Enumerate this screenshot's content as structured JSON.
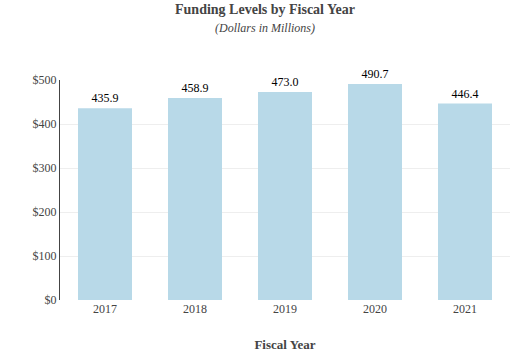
{
  "chart_data": {
    "type": "bar",
    "title": "Funding Levels by Fiscal Year",
    "subtitle": "(Dollars in Millions)",
    "xlabel": "Fiscal Year",
    "categories": [
      "2017",
      "2018",
      "2019",
      "2020",
      "2021"
    ],
    "values": [
      435.9,
      458.9,
      473.0,
      490.7,
      446.4
    ],
    "value_labels": [
      "435.9",
      "458.9",
      "473.0",
      "490.7",
      "446.4"
    ],
    "data_labels": true,
    "color": "#b8d9e8",
    "ylim": [
      0,
      500
    ],
    "yticks": [
      {
        "value": 0,
        "label": "$0"
      },
      {
        "value": 100,
        "label": "$100"
      },
      {
        "value": 200,
        "label": "$200"
      },
      {
        "value": 300,
        "label": "$300"
      },
      {
        "value": 400,
        "label": "$400"
      },
      {
        "value": 500,
        "label": "$500"
      }
    ],
    "grid": true
  }
}
